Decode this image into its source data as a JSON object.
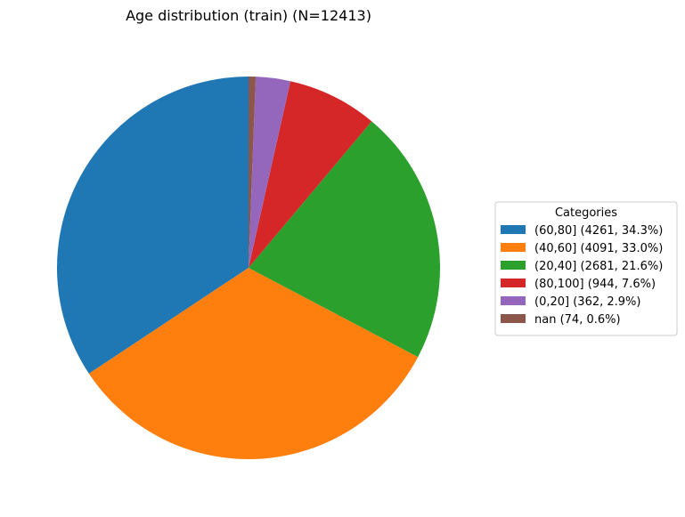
{
  "chart_data": {
    "type": "pie",
    "title": "Age distribution (train) (N=12413)",
    "start_angle_deg": 90,
    "direction": "counterclockwise",
    "slices": [
      {
        "label": "(60,80] (4261, 34.3%)",
        "value": 4261,
        "color": "#1f77b4"
      },
      {
        "label": "(40,60] (4091, 33.0%)",
        "value": 4091,
        "color": "#ff7f0e"
      },
      {
        "label": "(20,40] (2681, 21.6%)",
        "value": 2681,
        "color": "#2ca02c"
      },
      {
        "label": "(80,100] (944, 7.6%)",
        "value": 944,
        "color": "#d62728"
      },
      {
        "label": "(0,20] (362, 2.9%)",
        "value": 362,
        "color": "#9467bd"
      },
      {
        "label": "nan (74, 0.6%)",
        "value": 74,
        "color": "#8c564b"
      }
    ],
    "legend": {
      "title": "Categories",
      "placement": "center-right"
    }
  }
}
